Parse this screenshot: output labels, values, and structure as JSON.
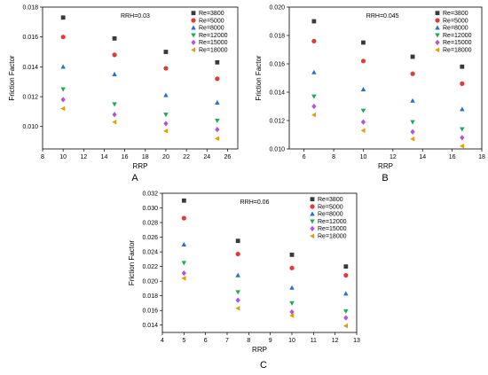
{
  "chart_data": [
    {
      "id": "A",
      "panel_label": "A",
      "type": "scatter",
      "annotation": "RRH=0.03",
      "xlabel": "RRP",
      "ylabel": "Friction Factor",
      "xlim": [
        8,
        27
      ],
      "ylim": [
        0.0085,
        0.018
      ],
      "xticks": [
        8,
        10,
        12,
        14,
        16,
        18,
        20,
        22,
        24,
        26
      ],
      "yticks": [
        0.01,
        0.012,
        0.014,
        0.016,
        0.018
      ],
      "ytick_decimals": 3,
      "x": [
        10,
        15,
        20,
        25
      ],
      "series": [
        {
          "name": "Re=3800",
          "color": "#3a3a3a",
          "marker": "square",
          "values": [
            0.0173,
            0.0159,
            0.015,
            0.0143
          ]
        },
        {
          "name": "Re=5000",
          "color": "#e23a3a",
          "marker": "circle",
          "values": [
            0.016,
            0.0148,
            0.0139,
            0.0132
          ]
        },
        {
          "name": "Re=8000",
          "color": "#2a6fd6",
          "marker": "triangle-up",
          "values": [
            0.014,
            0.0135,
            0.0121,
            0.0116
          ]
        },
        {
          "name": "Re=12000",
          "color": "#1faa5a",
          "marker": "triangle-down",
          "values": [
            0.0125,
            0.0115,
            0.0108,
            0.0104
          ]
        },
        {
          "name": "Re=15000",
          "color": "#b455d6",
          "marker": "diamond",
          "values": [
            0.0118,
            0.0108,
            0.0102,
            0.0098
          ]
        },
        {
          "name": "Re=18000",
          "color": "#e0a000",
          "marker": "triangle-left",
          "values": [
            0.0112,
            0.0103,
            0.0097,
            0.0092
          ]
        }
      ],
      "legend": "top-right"
    },
    {
      "id": "B",
      "panel_label": "B",
      "type": "scatter",
      "annotation": "RRH=0.045",
      "xlabel": "RRP",
      "ylabel": "Friction Factor",
      "xlim": [
        5,
        18
      ],
      "ylim": [
        0.01,
        0.02
      ],
      "xticks": [
        6,
        8,
        10,
        12,
        14,
        16,
        18
      ],
      "yticks": [
        0.01,
        0.012,
        0.014,
        0.016,
        0.018,
        0.02
      ],
      "ytick_decimals": 3,
      "x": [
        6.67,
        10,
        13.33,
        16.67
      ],
      "series": [
        {
          "name": "Re=3800",
          "color": "#3a3a3a",
          "marker": "square",
          "values": [
            0.019,
            0.0175,
            0.0165,
            0.0158
          ]
        },
        {
          "name": "Re=5000",
          "color": "#e23a3a",
          "marker": "circle",
          "values": [
            0.0176,
            0.0162,
            0.0153,
            0.0146
          ]
        },
        {
          "name": "Re=8000",
          "color": "#2a6fd6",
          "marker": "triangle-up",
          "values": [
            0.0154,
            0.0142,
            0.0134,
            0.0128
          ]
        },
        {
          "name": "Re=12000",
          "color": "#1faa5a",
          "marker": "triangle-down",
          "values": [
            0.0137,
            0.0127,
            0.0119,
            0.0114
          ]
        },
        {
          "name": "Re=15000",
          "color": "#b455d6",
          "marker": "diamond",
          "values": [
            0.013,
            0.0119,
            0.0112,
            0.0108
          ]
        },
        {
          "name": "Re=18000",
          "color": "#e0a000",
          "marker": "triangle-left",
          "values": [
            0.0124,
            0.0113,
            0.0107,
            0.0102
          ]
        }
      ],
      "legend": "top-right"
    },
    {
      "id": "C",
      "panel_label": "C",
      "type": "scatter",
      "annotation": "RRH=0.06",
      "xlabel": "RRP",
      "ylabel": "Friction Factor",
      "xlim": [
        4,
        13
      ],
      "ylim": [
        0.013,
        0.032
      ],
      "xticks": [
        4,
        5,
        6,
        7,
        8,
        9,
        10,
        11,
        12,
        13
      ],
      "yticks": [
        0.014,
        0.016,
        0.018,
        0.02,
        0.022,
        0.024,
        0.026,
        0.028,
        0.03,
        0.032
      ],
      "ytick_decimals": 3,
      "x": [
        5,
        7.5,
        10,
        12.5
      ],
      "series": [
        {
          "name": "Re=3800",
          "color": "#3a3a3a",
          "marker": "square",
          "values": [
            0.031,
            0.0255,
            0.0236,
            0.022
          ]
        },
        {
          "name": "Re=5000",
          "color": "#e23a3a",
          "marker": "circle",
          "values": [
            0.0286,
            0.0237,
            0.0218,
            0.0208
          ]
        },
        {
          "name": "Re=8000",
          "color": "#2a6fd6",
          "marker": "triangle-up",
          "values": [
            0.025,
            0.0208,
            0.0191,
            0.0183
          ]
        },
        {
          "name": "Re=12000",
          "color": "#1faa5a",
          "marker": "triangle-down",
          "values": [
            0.0225,
            0.0185,
            0.017,
            0.0159
          ]
        },
        {
          "name": "Re=15000",
          "color": "#b455d6",
          "marker": "diamond",
          "values": [
            0.0211,
            0.0174,
            0.0158,
            0.015
          ]
        },
        {
          "name": "Re=18000",
          "color": "#e0a000",
          "marker": "triangle-left",
          "values": [
            0.0204,
            0.0163,
            0.0153,
            0.0139
          ]
        }
      ],
      "legend": "top-right"
    }
  ]
}
